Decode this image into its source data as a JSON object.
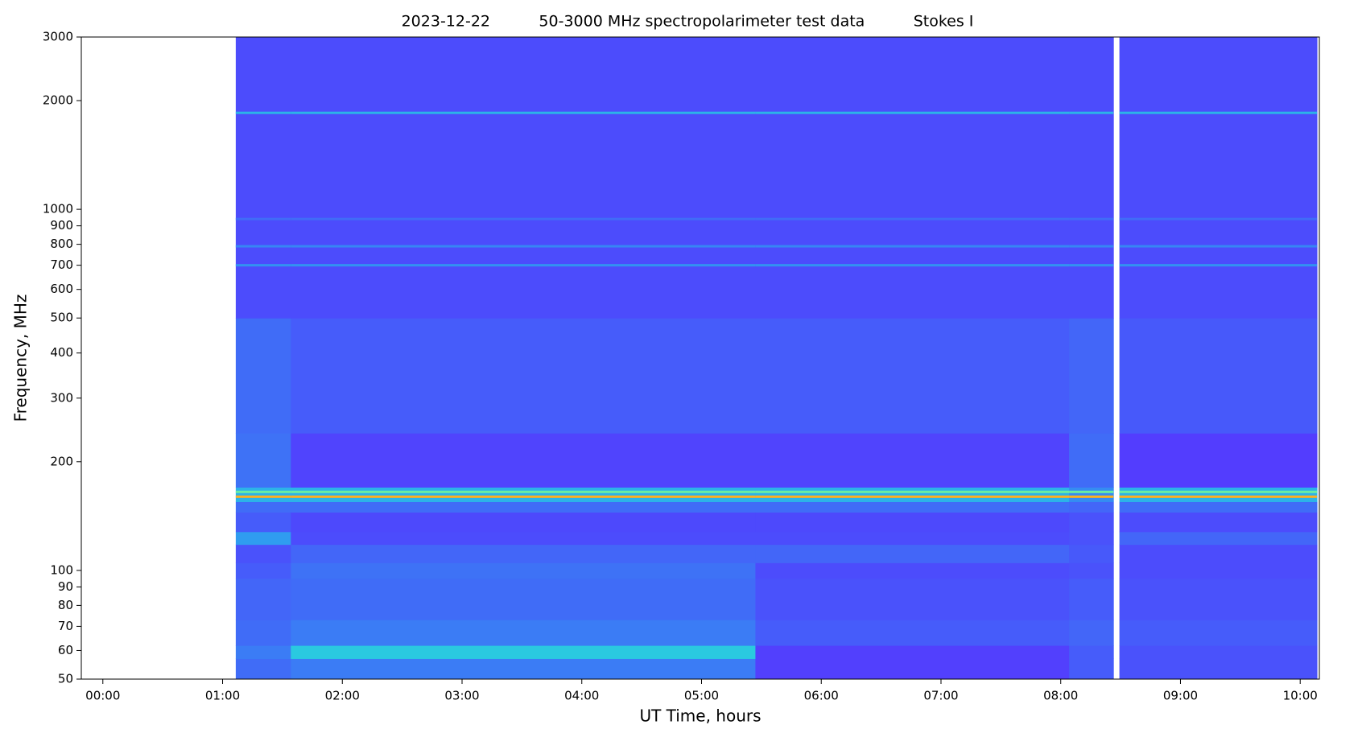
{
  "chart_data": {
    "type": "heatmap",
    "title": "2023-12-22          50-3000 MHz spectropolarimeter test data          Stokes I",
    "xlabel": "UT Time, hours",
    "ylabel": "Frequency, MHz",
    "xlim": [
      -0.18,
      10.16
    ],
    "ylim": [
      50,
      3000
    ],
    "yscale": "log",
    "xticks": [
      {
        "value": 0,
        "label": "00:00"
      },
      {
        "value": 1,
        "label": "01:00"
      },
      {
        "value": 2,
        "label": "02:00"
      },
      {
        "value": 3,
        "label": "03:00"
      },
      {
        "value": 4,
        "label": "04:00"
      },
      {
        "value": 5,
        "label": "05:00"
      },
      {
        "value": 6,
        "label": "06:00"
      },
      {
        "value": 7,
        "label": "07:00"
      },
      {
        "value": 8,
        "label": "08:00"
      },
      {
        "value": 9,
        "label": "09:00"
      },
      {
        "value": 10,
        "label": "10:00"
      }
    ],
    "yticks": [
      50,
      60,
      70,
      80,
      90,
      100,
      200,
      300,
      400,
      500,
      600,
      700,
      800,
      900,
      1000,
      2000,
      3000
    ],
    "colorscale": [
      [
        0,
        "#5a2dff"
      ],
      [
        0.2,
        "#4c4cfc"
      ],
      [
        0.45,
        "#2f9cf0"
      ],
      [
        0.6,
        "#27e0d8"
      ],
      [
        0.75,
        "#8cf08a"
      ],
      [
        0.9,
        "#ffb020"
      ],
      [
        1,
        "#ff1a00"
      ]
    ],
    "x_edges": [
      1.11,
      1.57,
      5.45,
      8.07,
      8.44,
      8.49,
      10.14
    ],
    "y_edges": [
      50,
      57,
      62,
      73,
      95,
      105,
      118,
      128,
      145,
      155,
      170,
      240,
      500,
      3000
    ],
    "z": [
      [
        0.3,
        0.35,
        0.12,
        0.25,
        null,
        0.22
      ],
      [
        0.35,
        0.55,
        0.12,
        0.25,
        null,
        0.22
      ],
      [
        0.3,
        0.35,
        0.25,
        0.28,
        null,
        0.25
      ],
      [
        0.28,
        0.3,
        0.22,
        0.25,
        null,
        0.22
      ],
      [
        0.25,
        0.32,
        0.2,
        0.22,
        null,
        0.2
      ],
      [
        0.22,
        0.28,
        0.28,
        0.24,
        null,
        0.2
      ],
      [
        0.45,
        0.2,
        0.2,
        0.22,
        null,
        0.28
      ],
      [
        0.25,
        0.18,
        0.18,
        0.22,
        null,
        0.2
      ],
      [
        0.3,
        0.3,
        0.3,
        0.28,
        null,
        0.3
      ],
      [
        0.5,
        0.5,
        0.5,
        0.4,
        null,
        0.5
      ],
      [
        0.32,
        0.15,
        0.15,
        0.3,
        null,
        0.1
      ],
      [
        0.3,
        0.25,
        0.25,
        0.28,
        null,
        0.24
      ],
      [
        0.2,
        0.2,
        0.2,
        0.2,
        null,
        0.2
      ]
    ],
    "lines": [
      {
        "freq": 1850,
        "value": 0.5
      },
      {
        "freq": 940,
        "value": 0.3
      },
      {
        "freq": 790,
        "value": 0.38
      },
      {
        "freq": 700,
        "value": 0.42
      },
      {
        "freq": 165,
        "value": 0.7
      },
      {
        "freq": 160,
        "value": 0.9
      }
    ]
  }
}
